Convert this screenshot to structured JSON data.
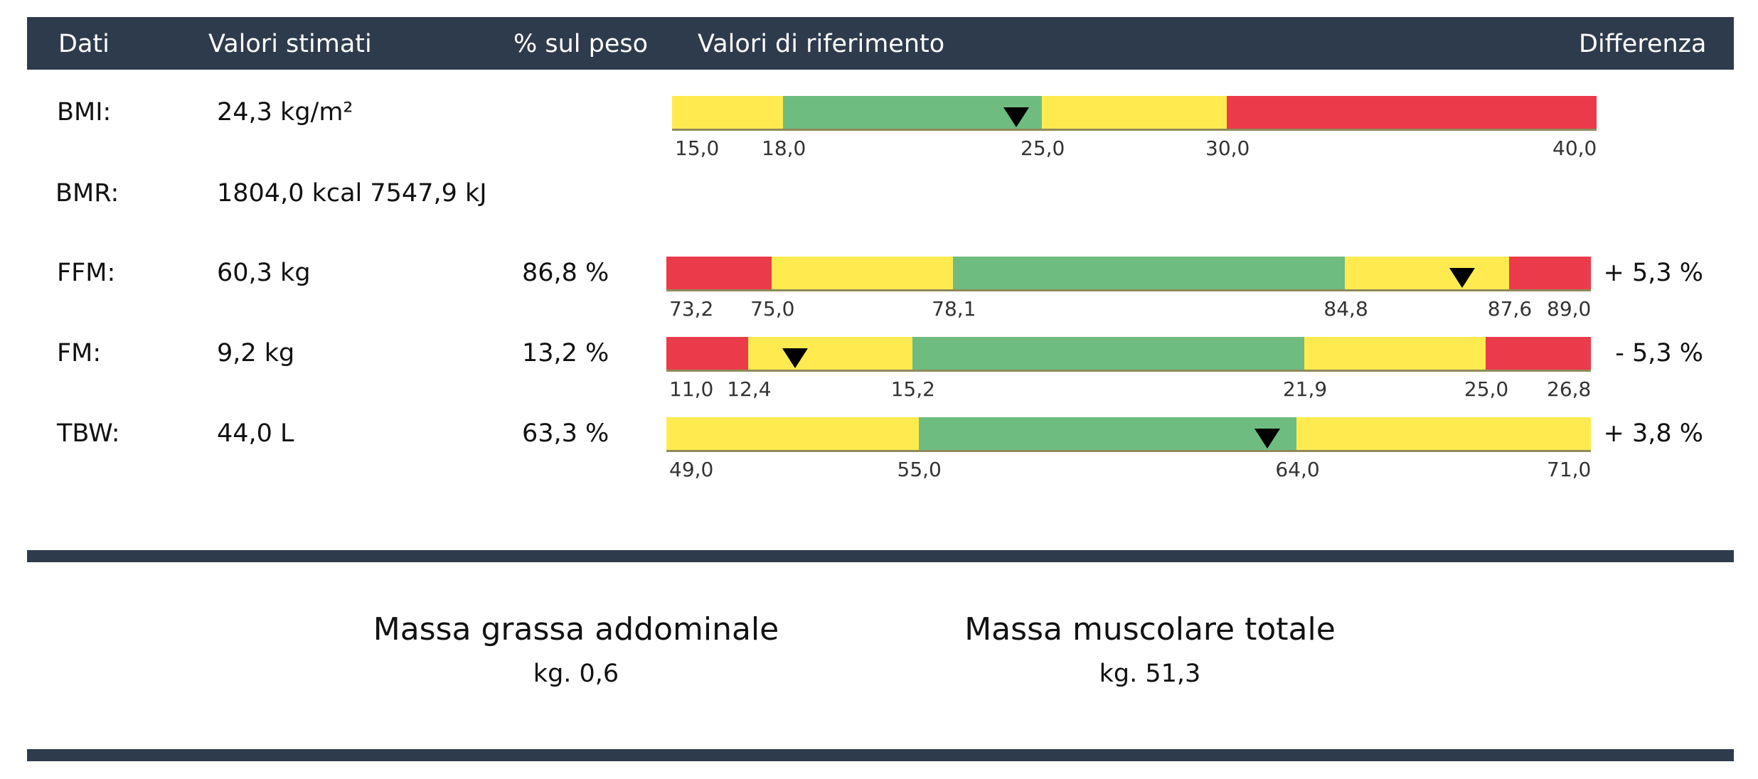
{
  "colors": {
    "header_bg": "#2e3b4c",
    "red": "#eb3b4a",
    "yellow": "#ffeb4f",
    "green": "#6fbc80"
  },
  "header": {
    "col_dati": "Dati",
    "col_valori": "Valori stimati",
    "col_pct": "% sul peso",
    "col_rif": "Valori di riferimento",
    "col_diff": "Differenza"
  },
  "rows": [
    {
      "label": "BMI:",
      "value": "24,3 kg/m²",
      "pct": "",
      "diff": "",
      "marker_value": 24.3,
      "range": [
        15.0,
        40.0
      ],
      "segments": [
        {
          "from": 15.0,
          "to": 18.0,
          "color": "yellow"
        },
        {
          "from": 18.0,
          "to": 25.0,
          "color": "green"
        },
        {
          "from": 25.0,
          "to": 30.0,
          "color": "yellow"
        },
        {
          "from": 30.0,
          "to": 40.0,
          "color": "red"
        }
      ],
      "ticks": [
        "15,0",
        "18,0",
        "25,0",
        "30,0",
        "40,0"
      ]
    },
    {
      "label": "BMR:",
      "value": "1804,0 kcal 7547,9 kJ",
      "pct": "",
      "diff": ""
    },
    {
      "label": "FFM:",
      "value": "60,3 kg",
      "pct": "86,8 %",
      "diff": "+ 5,3 %",
      "marker_value": 86.8,
      "range": [
        73.2,
        89.0
      ],
      "segments": [
        {
          "from": 73.2,
          "to": 75.0,
          "color": "red"
        },
        {
          "from": 75.0,
          "to": 78.1,
          "color": "yellow"
        },
        {
          "from": 78.1,
          "to": 84.8,
          "color": "green"
        },
        {
          "from": 84.8,
          "to": 87.6,
          "color": "yellow"
        },
        {
          "from": 87.6,
          "to": 89.0,
          "color": "red"
        }
      ],
      "ticks": [
        "73,2",
        "75,0",
        "78,1",
        "84,8",
        "87,6",
        "89,0"
      ]
    },
    {
      "label": "FM:",
      "value": "9,2 kg",
      "pct": "13,2 %",
      "diff": "- 5,3 %",
      "marker_value": 13.2,
      "range": [
        11.0,
        26.8
      ],
      "segments": [
        {
          "from": 11.0,
          "to": 12.4,
          "color": "red"
        },
        {
          "from": 12.4,
          "to": 15.2,
          "color": "yellow"
        },
        {
          "from": 15.2,
          "to": 21.9,
          "color": "green"
        },
        {
          "from": 21.9,
          "to": 25.0,
          "color": "yellow"
        },
        {
          "from": 25.0,
          "to": 26.8,
          "color": "red"
        }
      ],
      "ticks": [
        "11,0",
        "12,4",
        "15,2",
        "21,9",
        "25,0",
        "26,8"
      ]
    },
    {
      "label": "TBW:",
      "value": "44,0 L",
      "pct": "63,3 %",
      "diff": "+ 3,8 %",
      "marker_value": 63.3,
      "range": [
        49.0,
        71.0
      ],
      "segments": [
        {
          "from": 49.0,
          "to": 55.0,
          "color": "yellow"
        },
        {
          "from": 55.0,
          "to": 64.0,
          "color": "green"
        },
        {
          "from": 64.0,
          "to": 71.0,
          "color": "yellow"
        }
      ],
      "ticks": [
        "49,0",
        "55,0",
        "64,0",
        "71,0"
      ]
    }
  ],
  "summary": {
    "abd_title": "Massa grassa addominale",
    "abd_value": "kg. 0,6",
    "musc_title": "Massa muscolare totale",
    "musc_value": "kg. 51,3"
  }
}
